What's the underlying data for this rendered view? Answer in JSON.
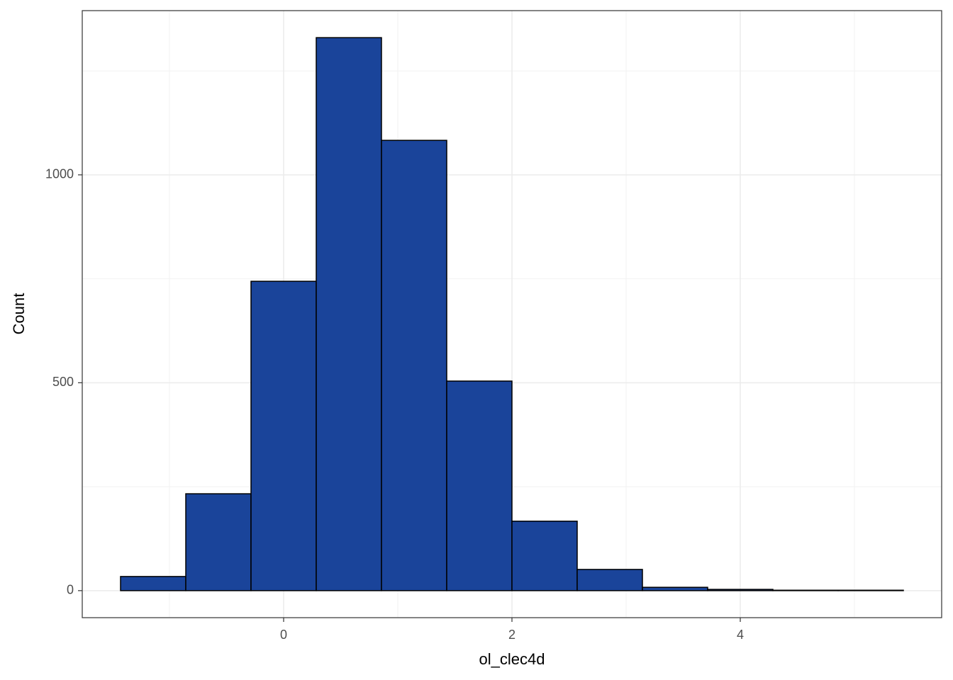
{
  "chart_data": {
    "type": "histogram",
    "xlabel": "ol_clec4d",
    "ylabel": "Count",
    "bins": [
      -1.4286,
      -0.8571,
      -0.2857,
      0.2857,
      0.8571,
      1.4286,
      2.0,
      2.5714,
      3.1429,
      3.7143,
      4.2857,
      4.8571,
      5.4286
    ],
    "counts": [
      34,
      233,
      744,
      1330,
      1083,
      504,
      167,
      51,
      8,
      3,
      1,
      1
    ],
    "color": "#1a449a",
    "edgecolor": "#000000",
    "xlim": [
      -1.764,
      5.764
    ],
    "ylim": [
      -65,
      1395
    ],
    "xticks": [
      0,
      2,
      4
    ],
    "yticks": [
      0,
      500,
      1000
    ],
    "minor_xticks": [
      -1,
      1,
      3,
      5
    ],
    "minor_yticks": [
      250,
      750,
      1250
    ],
    "grid": true
  }
}
